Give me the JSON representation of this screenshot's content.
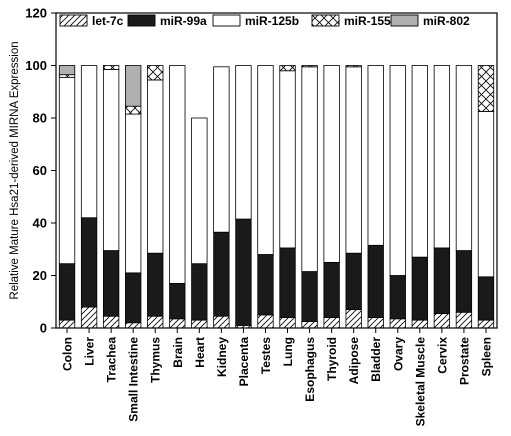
{
  "chart_data": {
    "type": "bar",
    "stacked": true,
    "title": "",
    "xlabel": "",
    "ylabel": "Relative Mature Hsa21-derived MIRNA Expression",
    "ylim": [
      0,
      120
    ],
    "yticks": [
      0,
      20,
      40,
      60,
      80,
      100,
      120
    ],
    "grid": false,
    "legend_position": "top, inside plot",
    "categories": [
      "Colon",
      "Liver",
      "Trachea",
      "Small Intestine",
      "Thymus",
      "Brain",
      "Heart",
      "Kidney",
      "Placenta",
      "Testes",
      "Lung",
      "Esophagus",
      "Thyroid",
      "Adipose",
      "Bladder",
      "Ovary",
      "Skeletal Muscle",
      "Cervix",
      "Prostate",
      "Spleen"
    ],
    "series": [
      {
        "name": "let-7c",
        "fill": "diagonal-hatch",
        "values": [
          3,
          8,
          4.5,
          2,
          4.5,
          3.5,
          3,
          4.5,
          1,
          5,
          4,
          2.5,
          4,
          7,
          4,
          3.5,
          3,
          5.5,
          6,
          3
        ]
      },
      {
        "name": "miR-99a",
        "fill": "#1a1a1a",
        "values": [
          21.5,
          34,
          25,
          19,
          24,
          13.5,
          21.5,
          32,
          40.5,
          23,
          26.5,
          19,
          21,
          21.5,
          27.5,
          16.5,
          24,
          25,
          23.5,
          16.5
        ]
      },
      {
        "name": "miR-125b",
        "fill": "#ffffff",
        "values": [
          71,
          58,
          69,
          60.5,
          66,
          83,
          55.5,
          63,
          58.5,
          72,
          67.5,
          78,
          75,
          71,
          68.5,
          80,
          73,
          69.5,
          70.5,
          63
        ]
      },
      {
        "name": "miR-155",
        "fill": "cross-hatch",
        "values": [
          1,
          0,
          1.5,
          3,
          5.5,
          0,
          0,
          0,
          0,
          0,
          2,
          0.5,
          0,
          0.5,
          0,
          0,
          0,
          0,
          0,
          17.5
        ]
      },
      {
        "name": "miR-802",
        "fill": "#b0b0b0",
        "values": [
          3.5,
          0,
          0,
          15.5,
          0,
          0,
          0,
          0,
          0,
          0,
          0,
          0,
          0,
          0,
          0,
          0,
          0,
          0,
          0,
          0
        ]
      }
    ]
  }
}
